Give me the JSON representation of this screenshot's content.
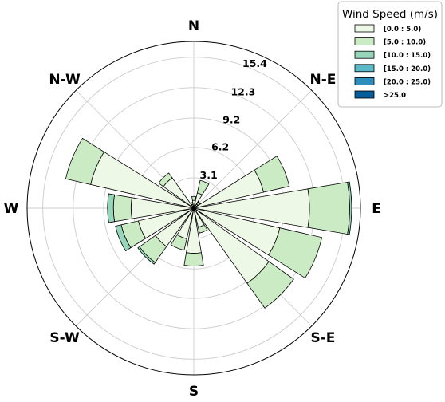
{
  "chart_data": {
    "type": "windrose",
    "title": "",
    "direction_labels": [
      {
        "key": "N",
        "text": "N",
        "angle": 0
      },
      {
        "key": "NE",
        "text": "N-E",
        "angle": 45
      },
      {
        "key": "E",
        "text": "E",
        "angle": 90
      },
      {
        "key": "SE",
        "text": "S-E",
        "angle": 135
      },
      {
        "key": "S",
        "text": "S",
        "angle": 180
      },
      {
        "key": "SW",
        "text": "S-W",
        "angle": 225
      },
      {
        "key": "W",
        "text": "W",
        "angle": 270
      },
      {
        "key": "NW",
        "text": "N-W",
        "angle": 315
      }
    ],
    "radial_ticks": [
      "3.1",
      "6.2",
      "9.2",
      "12.3",
      "15.4"
    ],
    "radial_tick_values": [
      3.1,
      6.2,
      9.2,
      12.3,
      15.4
    ],
    "r_max": 17.0,
    "legend_title": "Wind Speed (m/s)",
    "legend_position": "top-right",
    "bins": [
      "[0.0 : 5.0)",
      "[5.0 : 10.0)",
      "[10.0 : 15.0)",
      "[15.0 : 20.0)",
      "[20.0 : 25.0)",
      ">25.0"
    ],
    "colors": [
      "#eef8e6",
      "#cbebc5",
      "#98d6bc",
      "#5bb8c9",
      "#2d8ebd",
      "#075c9a"
    ],
    "sectors": [
      {
        "angle": 0.0,
        "values": [
          0.8,
          0.4,
          0.0,
          0.0,
          0.0,
          0.0
        ]
      },
      {
        "angle": 22.5,
        "values": [
          1.6,
          1.3,
          0.0,
          0.0,
          0.0,
          0.0
        ]
      },
      {
        "angle": 45.0,
        "values": [
          0.5,
          0.3,
          0.0,
          0.0,
          0.0,
          0.0
        ]
      },
      {
        "angle": 67.5,
        "values": [
          7.3,
          2.7,
          0.0,
          0.0,
          0.0,
          0.0
        ]
      },
      {
        "angle": 90.0,
        "values": [
          11.8,
          4.1,
          0.2,
          0.0,
          0.0,
          0.0
        ]
      },
      {
        "angle": 112.5,
        "values": [
          9.0,
          4.4,
          0.0,
          0.0,
          0.0,
          0.0
        ]
      },
      {
        "angle": 135.0,
        "values": [
          9.4,
          3.1,
          0.0,
          0.0,
          0.0,
          0.0
        ]
      },
      {
        "angle": 157.5,
        "values": [
          2.0,
          0.6,
          0.0,
          0.0,
          0.0,
          0.0
        ]
      },
      {
        "angle": 180.0,
        "values": [
          4.6,
          1.3,
          0.0,
          0.0,
          0.0,
          0.0
        ]
      },
      {
        "angle": 202.5,
        "values": [
          3.2,
          1.2,
          0.0,
          0.0,
          0.0,
          0.0
        ]
      },
      {
        "angle": 225.0,
        "values": [
          4.8,
          2.0,
          0.2,
          0.0,
          0.0,
          0.0
        ]
      },
      {
        "angle": 247.5,
        "values": [
          5.8,
          1.8,
          0.6,
          0.0,
          0.0,
          0.0
        ]
      },
      {
        "angle": 270.0,
        "values": [
          6.4,
          1.8,
          0.6,
          0.0,
          0.0,
          0.0
        ]
      },
      {
        "angle": 292.5,
        "values": [
          10.8,
          2.6,
          0.0,
          0.0,
          0.0,
          0.0
        ]
      },
      {
        "angle": 315.0,
        "values": [
          3.8,
          0.6,
          0.0,
          0.0,
          0.0,
          0.0
        ]
      },
      {
        "angle": 337.5,
        "values": [
          0.4,
          0.2,
          0.0,
          0.0,
          0.0,
          0.0
        ]
      }
    ],
    "grid": true
  }
}
